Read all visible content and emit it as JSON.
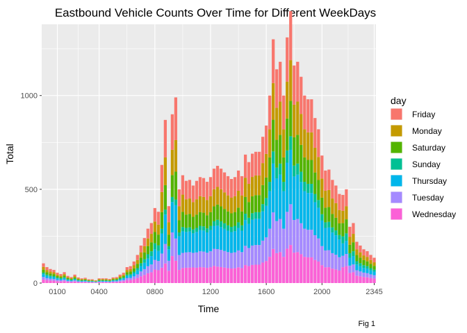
{
  "chart_data": {
    "type": "bar",
    "stacked": true,
    "title": "Eastbound Vehicle Counts Over Time for Different WeekDays",
    "xlabel": "Time",
    "ylabel": "Total",
    "caption": "Fig 1",
    "legend_title": "day",
    "legend_position": "right",
    "grid": true,
    "ylim": [
      0,
      1380
    ],
    "y_ticks": [
      0,
      500,
      1000
    ],
    "x_tick_labels": [
      "0100",
      "0400",
      "0800",
      "1200",
      "1600",
      "2000",
      "2345"
    ],
    "x": [
      "0000",
      "0015",
      "0030",
      "0045",
      "0100",
      "0115",
      "0130",
      "0145",
      "0200",
      "0215",
      "0230",
      "0245",
      "0300",
      "0315",
      "0330",
      "0345",
      "0400",
      "0415",
      "0430",
      "0445",
      "0500",
      "0515",
      "0530",
      "0545",
      "0600",
      "0615",
      "0630",
      "0645",
      "0700",
      "0715",
      "0730",
      "0745",
      "0800",
      "0815",
      "0830",
      "0845",
      "0900",
      "0915",
      "0930",
      "0945",
      "1000",
      "1015",
      "1030",
      "1045",
      "1100",
      "1115",
      "1130",
      "1145",
      "1200",
      "1215",
      "1230",
      "1245",
      "1300",
      "1315",
      "1330",
      "1345",
      "1400",
      "1415",
      "1430",
      "1445",
      "1500",
      "1515",
      "1530",
      "1545",
      "1600",
      "1615",
      "1630",
      "1645",
      "1700",
      "1715",
      "1730",
      "1745",
      "1800",
      "1815",
      "1830",
      "1845",
      "1900",
      "1915",
      "1930",
      "1945",
      "2000",
      "2015",
      "2030",
      "2045",
      "2100",
      "2115",
      "2130",
      "2145",
      "2200",
      "2215",
      "2230",
      "2245",
      "2300",
      "2315",
      "2330",
      "2345"
    ],
    "totals": [
      105,
      85,
      75,
      70,
      55,
      48,
      58,
      38,
      32,
      45,
      30,
      25,
      28,
      20,
      20,
      15,
      25,
      25,
      25,
      22,
      30,
      32,
      45,
      55,
      85,
      90,
      115,
      150,
      200,
      240,
      290,
      320,
      400,
      380,
      630,
      870,
      410,
      900,
      990,
      500,
      575,
      545,
      550,
      520,
      545,
      565,
      560,
      540,
      565,
      610,
      625,
      610,
      590,
      570,
      555,
      565,
      600,
      570,
      685,
      645,
      690,
      700,
      700,
      780,
      840,
      1000,
      1300,
      1140,
      1180,
      1000,
      1310,
      1450,
      1160,
      1180,
      1100,
      1000,
      980,
      980,
      880,
      820,
      680,
      600,
      605,
      550,
      520,
      475,
      470,
      500,
      300,
      320,
      220,
      200,
      180,
      170,
      150,
      135
    ],
    "shares": {
      "Wednesday": [
        0.18,
        0.18,
        0.18,
        0.18,
        0.18,
        0.18,
        0.18,
        0.18,
        0.18,
        0.18,
        0.18,
        0.18,
        0.18,
        0.18,
        0.18,
        0.18,
        0.18,
        0.18,
        0.18,
        0.18,
        0.18,
        0.18,
        0.18,
        0.18,
        0.18,
        0.18,
        0.18,
        0.18,
        0.18,
        0.18,
        0.18,
        0.18,
        0.18,
        0.18,
        0.13,
        0.12,
        0.16,
        0.16,
        0.12,
        0.14,
        0.14,
        0.15,
        0.15,
        0.16,
        0.15,
        0.15,
        0.15,
        0.15,
        0.15,
        0.15,
        0.14,
        0.14,
        0.14,
        0.14,
        0.14,
        0.14,
        0.14,
        0.14,
        0.14,
        0.14,
        0.14,
        0.14,
        0.14,
        0.14,
        0.14,
        0.14,
        0.14,
        0.14,
        0.14,
        0.14,
        0.14,
        0.14,
        0.14,
        0.14,
        0.14,
        0.14,
        0.14,
        0.14,
        0.14,
        0.14,
        0.14,
        0.14,
        0.14,
        0.14,
        0.14,
        0.14,
        0.18,
        0.18,
        0.18,
        0.18,
        0.18,
        0.18,
        0.18,
        0.18,
        0.18,
        0.18
      ],
      "Tuesday": [
        0.13,
        0.13,
        0.13,
        0.13,
        0.13,
        0.13,
        0.13,
        0.13,
        0.13,
        0.13,
        0.13,
        0.13,
        0.13,
        0.13,
        0.13,
        0.13,
        0.13,
        0.13,
        0.13,
        0.13,
        0.13,
        0.13,
        0.13,
        0.13,
        0.13,
        0.13,
        0.13,
        0.13,
        0.13,
        0.13,
        0.13,
        0.13,
        0.13,
        0.13,
        0.12,
        0.12,
        0.13,
        0.14,
        0.12,
        0.16,
        0.14,
        0.15,
        0.15,
        0.15,
        0.15,
        0.15,
        0.15,
        0.15,
        0.15,
        0.15,
        0.15,
        0.15,
        0.15,
        0.15,
        0.15,
        0.15,
        0.15,
        0.15,
        0.15,
        0.15,
        0.15,
        0.15,
        0.15,
        0.15,
        0.15,
        0.15,
        0.15,
        0.15,
        0.15,
        0.15,
        0.15,
        0.15,
        0.15,
        0.15,
        0.15,
        0.15,
        0.15,
        0.15,
        0.15,
        0.15,
        0.15,
        0.15,
        0.15,
        0.15,
        0.15,
        0.15,
        0.13,
        0.13,
        0.13,
        0.13,
        0.13,
        0.13,
        0.13,
        0.13,
        0.13,
        0.13
      ],
      "Thursday": [
        0.14,
        0.14,
        0.14,
        0.14,
        0.14,
        0.14,
        0.14,
        0.14,
        0.14,
        0.14,
        0.14,
        0.14,
        0.14,
        0.14,
        0.14,
        0.14,
        0.14,
        0.14,
        0.14,
        0.14,
        0.14,
        0.14,
        0.14,
        0.14,
        0.14,
        0.14,
        0.14,
        0.14,
        0.14,
        0.14,
        0.14,
        0.14,
        0.14,
        0.14,
        0.17,
        0.18,
        0.15,
        0.18,
        0.18,
        0.2,
        0.2,
        0.2,
        0.2,
        0.2,
        0.2,
        0.2,
        0.2,
        0.2,
        0.2,
        0.2,
        0.2,
        0.2,
        0.2,
        0.2,
        0.2,
        0.2,
        0.2,
        0.2,
        0.2,
        0.2,
        0.2,
        0.2,
        0.2,
        0.2,
        0.2,
        0.2,
        0.2,
        0.2,
        0.2,
        0.2,
        0.2,
        0.2,
        0.2,
        0.2,
        0.2,
        0.2,
        0.2,
        0.2,
        0.2,
        0.2,
        0.2,
        0.2,
        0.2,
        0.2,
        0.2,
        0.2,
        0.14,
        0.14,
        0.14,
        0.14,
        0.14,
        0.14,
        0.14,
        0.14,
        0.14,
        0.14
      ],
      "Sunday": [
        0.08,
        0.08,
        0.08,
        0.08,
        0.08,
        0.08,
        0.08,
        0.08,
        0.08,
        0.08,
        0.08,
        0.08,
        0.08,
        0.08,
        0.08,
        0.08,
        0.08,
        0.08,
        0.08,
        0.08,
        0.08,
        0.08,
        0.08,
        0.08,
        0.08,
        0.08,
        0.08,
        0.08,
        0.08,
        0.08,
        0.08,
        0.08,
        0.08,
        0.08,
        0.04,
        0.03,
        0.04,
        0.03,
        0.03,
        0.04,
        0.04,
        0.04,
        0.04,
        0.04,
        0.04,
        0.04,
        0.04,
        0.04,
        0.04,
        0.04,
        0.05,
        0.05,
        0.05,
        0.05,
        0.05,
        0.05,
        0.05,
        0.05,
        0.05,
        0.05,
        0.05,
        0.05,
        0.05,
        0.05,
        0.05,
        0.05,
        0.05,
        0.05,
        0.05,
        0.05,
        0.05,
        0.05,
        0.05,
        0.05,
        0.05,
        0.05,
        0.05,
        0.05,
        0.05,
        0.05,
        0.05,
        0.05,
        0.05,
        0.05,
        0.05,
        0.05,
        0.08,
        0.08,
        0.08,
        0.08,
        0.08,
        0.08,
        0.08,
        0.08,
        0.08,
        0.08
      ],
      "Saturday": [
        0.15,
        0.15,
        0.15,
        0.15,
        0.15,
        0.15,
        0.15,
        0.15,
        0.15,
        0.15,
        0.15,
        0.15,
        0.15,
        0.15,
        0.15,
        0.15,
        0.15,
        0.15,
        0.15,
        0.15,
        0.15,
        0.15,
        0.15,
        0.15,
        0.15,
        0.15,
        0.15,
        0.15,
        0.15,
        0.15,
        0.15,
        0.15,
        0.15,
        0.15,
        0.14,
        0.15,
        0.15,
        0.13,
        0.15,
        0.13,
        0.14,
        0.13,
        0.13,
        0.13,
        0.13,
        0.13,
        0.13,
        0.13,
        0.13,
        0.13,
        0.13,
        0.13,
        0.13,
        0.13,
        0.13,
        0.13,
        0.13,
        0.13,
        0.13,
        0.13,
        0.13,
        0.13,
        0.13,
        0.13,
        0.13,
        0.13,
        0.13,
        0.13,
        0.13,
        0.13,
        0.13,
        0.13,
        0.13,
        0.13,
        0.13,
        0.13,
        0.13,
        0.13,
        0.13,
        0.13,
        0.13,
        0.13,
        0.13,
        0.13,
        0.13,
        0.13,
        0.15,
        0.15,
        0.15,
        0.15,
        0.15,
        0.15,
        0.15,
        0.15,
        0.15,
        0.15
      ],
      "Monday": [
        0.14,
        0.14,
        0.14,
        0.14,
        0.14,
        0.14,
        0.14,
        0.14,
        0.14,
        0.14,
        0.14,
        0.14,
        0.14,
        0.14,
        0.14,
        0.14,
        0.14,
        0.14,
        0.14,
        0.14,
        0.14,
        0.14,
        0.14,
        0.14,
        0.14,
        0.14,
        0.14,
        0.14,
        0.14,
        0.14,
        0.14,
        0.14,
        0.14,
        0.14,
        0.17,
        0.17,
        0.16,
        0.15,
        0.17,
        0.15,
        0.16,
        0.15,
        0.15,
        0.15,
        0.15,
        0.15,
        0.15,
        0.15,
        0.15,
        0.15,
        0.15,
        0.15,
        0.15,
        0.15,
        0.15,
        0.15,
        0.15,
        0.15,
        0.15,
        0.15,
        0.15,
        0.15,
        0.15,
        0.15,
        0.15,
        0.15,
        0.15,
        0.15,
        0.15,
        0.15,
        0.15,
        0.15,
        0.15,
        0.15,
        0.15,
        0.15,
        0.15,
        0.15,
        0.15,
        0.15,
        0.15,
        0.15,
        0.15,
        0.15,
        0.15,
        0.15,
        0.14,
        0.14,
        0.14,
        0.14,
        0.14,
        0.14,
        0.14,
        0.14,
        0.14,
        0.14
      ],
      "Friday": [
        0.18,
        0.18,
        0.18,
        0.18,
        0.18,
        0.18,
        0.18,
        0.18,
        0.18,
        0.18,
        0.18,
        0.18,
        0.18,
        0.18,
        0.18,
        0.18,
        0.18,
        0.18,
        0.18,
        0.18,
        0.18,
        0.18,
        0.18,
        0.18,
        0.18,
        0.18,
        0.18,
        0.18,
        0.18,
        0.18,
        0.18,
        0.18,
        0.18,
        0.18,
        0.23,
        0.23,
        0.21,
        0.21,
        0.23,
        0.18,
        0.18,
        0.18,
        0.18,
        0.17,
        0.18,
        0.18,
        0.18,
        0.18,
        0.18,
        0.18,
        0.18,
        0.18,
        0.18,
        0.18,
        0.18,
        0.18,
        0.18,
        0.18,
        0.18,
        0.18,
        0.18,
        0.18,
        0.18,
        0.18,
        0.18,
        0.18,
        0.18,
        0.18,
        0.18,
        0.18,
        0.18,
        0.18,
        0.18,
        0.18,
        0.18,
        0.18,
        0.18,
        0.18,
        0.18,
        0.18,
        0.18,
        0.18,
        0.18,
        0.18,
        0.18,
        0.18,
        0.18,
        0.18,
        0.18,
        0.18,
        0.18,
        0.18,
        0.18,
        0.18,
        0.18,
        0.18
      ]
    },
    "stack_order_bottom_to_top": [
      "Wednesday",
      "Tuesday",
      "Thursday",
      "Sunday",
      "Saturday",
      "Monday",
      "Friday"
    ],
    "series": [
      {
        "name": "Friday",
        "color": "#F8766D"
      },
      {
        "name": "Monday",
        "color": "#C49A00"
      },
      {
        "name": "Saturday",
        "color": "#53B400"
      },
      {
        "name": "Sunday",
        "color": "#00C094"
      },
      {
        "name": "Thursday",
        "color": "#00B6EB"
      },
      {
        "name": "Tuesday",
        "color": "#A58AFF"
      },
      {
        "name": "Wednesday",
        "color": "#FB61D7"
      }
    ],
    "panel_background": "#EBEBEB",
    "grid_color": "#FFFFFF"
  }
}
